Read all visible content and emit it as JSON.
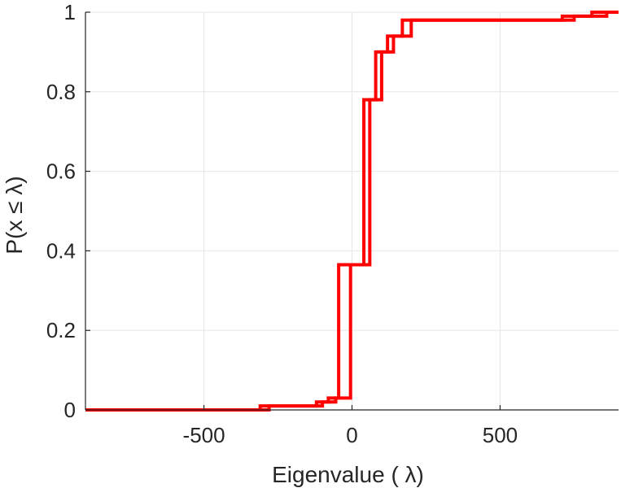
{
  "chart_data": {
    "type": "line",
    "title": "",
    "xlabel": "Eigenvalue (   λ)",
    "ylabel": "P(x ≤ λ)",
    "xlim": [
      -900,
      900
    ],
    "ylim": [
      0,
      1
    ],
    "xticks": [
      -500,
      0,
      500
    ],
    "xtick_labels": [
      "-500",
      "0",
      "500"
    ],
    "yticks": [
      0,
      0.2,
      0.4,
      0.6,
      0.8,
      1
    ],
    "ytick_labels": [
      "0",
      "0.2",
      "0.4",
      "0.6",
      "0.8",
      "1"
    ],
    "grid": true,
    "color": "#ff0000",
    "series": [
      {
        "step_x": [
          -900,
          -310,
          -120,
          -80,
          -45,
          60,
          100,
          140,
          200,
          750,
          860,
          900
        ],
        "step_y": [
          0,
          0.01,
          0.02,
          0.03,
          0.365,
          0.78,
          0.9,
          0.94,
          0.98,
          0.99,
          1.0,
          1.0
        ]
      },
      {
        "step_x": [
          -900,
          -280,
          -100,
          -55,
          -5,
          40,
          80,
          120,
          170,
          710,
          810,
          900
        ],
        "step_y": [
          0,
          0.01,
          0.02,
          0.03,
          0.365,
          0.78,
          0.9,
          0.94,
          0.98,
          0.99,
          1.0,
          1.0
        ]
      }
    ]
  }
}
